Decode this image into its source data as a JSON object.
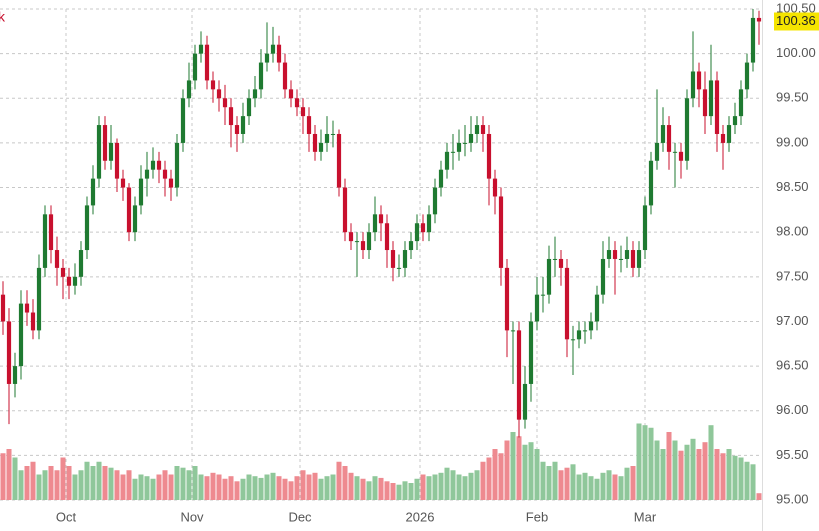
{
  "chart_data": {
    "type": "candlestick",
    "corner_text": "k",
    "xlim": [
      -0.5,
      126.5
    ],
    "xticks": [
      {
        "value": 10.5,
        "label": "Oct"
      },
      {
        "value": 31.5,
        "label": "Nov"
      },
      {
        "value": 49.5,
        "label": "Dec"
      },
      {
        "value": 69.5,
        "label": "2026"
      },
      {
        "value": 89,
        "label": "Feb"
      },
      {
        "value": 107,
        "label": "Mar"
      }
    ],
    "ylim": [
      95,
      100.5
    ],
    "yticks": [
      {
        "value": 95,
        "label": "95.00"
      },
      {
        "value": 95.5,
        "label": "95.50"
      },
      {
        "value": 96,
        "label": "96.00"
      },
      {
        "value": 96.5,
        "label": "96.50"
      },
      {
        "value": 97,
        "label": "97.00"
      },
      {
        "value": 97.5,
        "label": "97.50"
      },
      {
        "value": 98,
        "label": "98.00"
      },
      {
        "value": 98.5,
        "label": "98.50"
      },
      {
        "value": 99,
        "label": "99.00"
      },
      {
        "value": 99.5,
        "label": "99.50"
      },
      {
        "value": 100,
        "label": "100.00"
      },
      {
        "value": 100.5,
        "label": "100.50"
      }
    ],
    "grid": true,
    "up_color": "#1f7a31",
    "down_color": "#c8102e",
    "up_volume_color": "#8fc79a",
    "down_volume_color": "#ee8a90",
    "last_price": {
      "value": 100.36,
      "label": "100.36"
    },
    "last_price_color": "#f5e400",
    "open": [
      97.3,
      97.0,
      96.3,
      96.5,
      97.2,
      97.1,
      96.9,
      97.6,
      98.2,
      97.8,
      97.6,
      97.5,
      97.4,
      97.5,
      97.8,
      98.3,
      98.6,
      99.2,
      98.8,
      99.0,
      98.6,
      98.5,
      98.0,
      98.3,
      98.6,
      98.7,
      98.8,
      98.7,
      98.6,
      98.5,
      99.0,
      99.5,
      99.7,
      100.0,
      100.1,
      99.7,
      99.6,
      99.5,
      99.4,
      99.2,
      99.1,
      99.3,
      99.5,
      99.6,
      99.9,
      100.0,
      100.1,
      99.9,
      99.6,
      99.5,
      99.4,
      99.3,
      99.1,
      98.9,
      99.0,
      99.1,
      99.1,
      98.5,
      98.0,
      97.9,
      97.9,
      97.8,
      98.0,
      98.2,
      98.1,
      97.8,
      97.6,
      97.6,
      97.8,
      97.9,
      98.1,
      98.0,
      98.2,
      98.5,
      98.7,
      98.9,
      98.9,
      99.0,
      99.0,
      99.1,
      99.2,
      99.1,
      98.6,
      98.4,
      97.6,
      96.9,
      96.9,
      95.9,
      96.3,
      97.0,
      97.3,
      97.3,
      97.7,
      97.7,
      97.6,
      96.8,
      96.8,
      96.9,
      96.9,
      97.0,
      97.3,
      97.7,
      97.8,
      97.7,
      97.7,
      97.8,
      97.6,
      97.8,
      98.3,
      98.8,
      99.0,
      99.2,
      98.9,
      98.9,
      98.8,
      99.5,
      99.8,
      99.6,
      99.3,
      99.7,
      99.1,
      99.0,
      99.2,
      99.3,
      99.6,
      99.9,
      100.4
    ],
    "high": [
      97.45,
      97.15,
      96.65,
      97.35,
      97.35,
      97.25,
      97.75,
      98.3,
      98.3,
      97.95,
      97.7,
      97.6,
      97.65,
      97.9,
      98.4,
      98.75,
      99.3,
      99.3,
      99.2,
      99.05,
      98.7,
      98.55,
      98.4,
      98.75,
      98.9,
      98.95,
      98.9,
      98.8,
      98.7,
      99.1,
      99.6,
      99.9,
      100.1,
      100.25,
      100.2,
      99.8,
      99.7,
      99.65,
      99.5,
      99.3,
      99.45,
      99.6,
      99.75,
      100.05,
      100.35,
      100.3,
      100.2,
      100.0,
      99.7,
      99.6,
      99.5,
      99.4,
      99.2,
      99.15,
      99.3,
      99.25,
      99.15,
      98.6,
      98.1,
      98.0,
      98.0,
      98.1,
      98.4,
      98.3,
      98.2,
      97.9,
      97.75,
      97.9,
      98.0,
      98.2,
      98.2,
      98.3,
      98.6,
      98.8,
      99.0,
      99.1,
      99.15,
      99.2,
      99.3,
      99.3,
      99.3,
      99.2,
      98.7,
      98.5,
      97.7,
      97.0,
      97.0,
      96.5,
      97.1,
      97.5,
      97.5,
      97.85,
      97.95,
      97.8,
      97.7,
      96.95,
      97.0,
      97.0,
      97.1,
      97.4,
      97.9,
      97.95,
      97.9,
      97.85,
      97.95,
      97.9,
      97.9,
      98.4,
      98.9,
      99.6,
      99.4,
      99.3,
      99.0,
      99.0,
      99.6,
      100.25,
      99.9,
      99.8,
      100.1,
      99.8,
      99.2,
      99.3,
      99.45,
      99.7,
      100.0,
      100.5,
      100.48
    ],
    "low": [
      96.85,
      95.85,
      96.15,
      96.35,
      96.95,
      96.8,
      96.8,
      97.5,
      97.65,
      97.4,
      97.25,
      97.25,
      97.3,
      97.4,
      97.7,
      98.2,
      98.5,
      98.7,
      98.7,
      98.45,
      98.35,
      97.9,
      97.9,
      98.2,
      98.4,
      98.6,
      98.55,
      98.4,
      98.35,
      98.4,
      98.9,
      99.4,
      99.6,
      99.9,
      99.6,
      99.45,
      99.35,
      99.2,
      98.95,
      98.9,
      99.0,
      99.2,
      99.4,
      99.5,
      99.8,
      99.9,
      99.8,
      99.5,
      99.4,
      99.3,
      99.1,
      98.9,
      98.8,
      98.8,
      98.9,
      98.95,
      98.4,
      97.9,
      97.8,
      97.5,
      97.7,
      97.7,
      97.9,
      97.9,
      97.6,
      97.45,
      97.5,
      97.5,
      97.7,
      97.8,
      97.9,
      97.9,
      98.1,
      98.4,
      98.6,
      98.7,
      98.8,
      98.85,
      98.9,
      99.0,
      98.9,
      98.3,
      98.2,
      97.4,
      96.6,
      96.3,
      95.7,
      95.8,
      96.1,
      96.9,
      97.1,
      97.2,
      97.5,
      97.4,
      96.6,
      96.4,
      96.7,
      96.75,
      96.8,
      96.9,
      97.2,
      97.6,
      97.3,
      97.55,
      97.6,
      97.5,
      97.5,
      97.7,
      98.2,
      98.7,
      98.9,
      98.7,
      98.5,
      98.6,
      98.7,
      99.4,
      99.4,
      99.1,
      99.2,
      98.9,
      98.7,
      98.9,
      99.1,
      99.2,
      99.5,
      99.8,
      100.1
    ],
    "close": [
      97.0,
      96.3,
      96.5,
      97.2,
      97.1,
      96.9,
      97.6,
      98.2,
      97.8,
      97.6,
      97.5,
      97.4,
      97.5,
      97.8,
      98.3,
      98.6,
      99.2,
      98.8,
      99.0,
      98.6,
      98.5,
      98.0,
      98.3,
      98.6,
      98.7,
      98.8,
      98.7,
      98.6,
      98.5,
      99.0,
      99.5,
      99.7,
      100.0,
      100.1,
      99.7,
      99.6,
      99.5,
      99.4,
      99.2,
      99.1,
      99.3,
      99.5,
      99.6,
      99.9,
      100.0,
      100.1,
      99.9,
      99.6,
      99.5,
      99.4,
      99.3,
      99.1,
      98.9,
      99.0,
      99.1,
      99.1,
      98.5,
      98.0,
      97.9,
      97.9,
      97.8,
      98.0,
      98.2,
      98.1,
      97.8,
      97.6,
      97.6,
      97.8,
      97.9,
      98.1,
      98.0,
      98.2,
      98.5,
      98.7,
      98.9,
      98.9,
      99.0,
      99.0,
      99.1,
      99.2,
      99.1,
      98.6,
      98.4,
      97.6,
      96.9,
      96.9,
      95.9,
      96.3,
      97.0,
      97.3,
      97.3,
      97.7,
      97.7,
      97.6,
      96.8,
      96.8,
      96.9,
      96.9,
      97.0,
      97.3,
      97.7,
      97.8,
      97.7,
      97.7,
      97.8,
      97.6,
      97.8,
      98.3,
      98.8,
      99.0,
      99.2,
      98.9,
      98.9,
      98.8,
      99.5,
      99.8,
      99.6,
      99.3,
      99.7,
      99.1,
      99.0,
      99.2,
      99.3,
      99.6,
      99.9,
      100.4,
      100.36
    ],
    "vlim": [
      0,
      100
    ],
    "volume": [
      55,
      60,
      50,
      35,
      40,
      45,
      30,
      35,
      40,
      35,
      50,
      40,
      30,
      35,
      45,
      40,
      45,
      40,
      38,
      35,
      30,
      35,
      25,
      30,
      28,
      25,
      30,
      35,
      30,
      40,
      38,
      35,
      40,
      30,
      28,
      32,
      30,
      25,
      28,
      22,
      25,
      30,
      28,
      26,
      30,
      32,
      28,
      25,
      22,
      28,
      35,
      30,
      32,
      25,
      28,
      30,
      45,
      40,
      32,
      28,
      25,
      22,
      28,
      26,
      22,
      20,
      18,
      22,
      20,
      25,
      30,
      28,
      30,
      32,
      38,
      35,
      30,
      28,
      32,
      35,
      45,
      50,
      60,
      55,
      70,
      80,
      75,
      65,
      68,
      60,
      45,
      40,
      45,
      35,
      38,
      42,
      30,
      32,
      28,
      25,
      32,
      35,
      30,
      28,
      38,
      40,
      90,
      88,
      85,
      70,
      60,
      80,
      70,
      58,
      65,
      72,
      60,
      68,
      88,
      60,
      55,
      60,
      52,
      50,
      45,
      42,
      8
    ]
  }
}
